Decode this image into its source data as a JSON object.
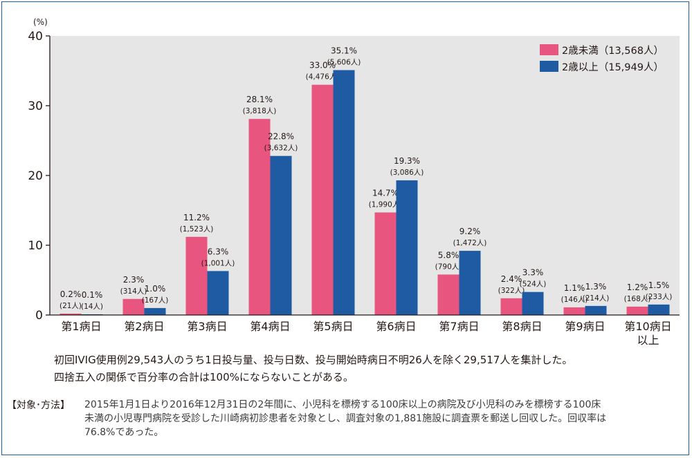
{
  "chart_data": {
    "type": "bar",
    "ylabel": "(%)",
    "ylim": [
      0,
      40
    ],
    "yticks": [
      0,
      10,
      20,
      30,
      40
    ],
    "categories": [
      "第1病日",
      "第2病日",
      "第3病日",
      "第4病日",
      "第5病日",
      "第6病日",
      "第7病日",
      "第8病日",
      "第9病日",
      "第10病日以上"
    ],
    "category_lines": [
      [
        "第1病日"
      ],
      [
        "第2病日"
      ],
      [
        "第3病日"
      ],
      [
        "第4病日"
      ],
      [
        "第5病日"
      ],
      [
        "第6病日"
      ],
      [
        "第7病日"
      ],
      [
        "第8病日"
      ],
      [
        "第9病日"
      ],
      [
        "第10病日",
        "以上"
      ]
    ],
    "legend_position": "top-right",
    "grid": false,
    "series": [
      {
        "name": "2歳未満（13,568人）",
        "color": "#e8557e",
        "values": [
          0.2,
          2.3,
          11.2,
          28.1,
          33.0,
          14.7,
          5.8,
          2.4,
          1.1,
          1.2
        ],
        "pct_labels": [
          "0.2%",
          "2.3%",
          "11.2%",
          "28.1%",
          "33.0%",
          "14.7%",
          "5.8%",
          "2.4%",
          "1.1%",
          "1.2%"
        ],
        "count_labels": [
          "(21人)",
          "(314人)",
          "(1,523人)",
          "(3,818人)",
          "(4,476人)",
          "(1,990人)",
          "(790人)",
          "(322人)",
          "(146人)",
          "(168人)"
        ]
      },
      {
        "name": "2歳以上（15,949人）",
        "color": "#1f5ba3",
        "values": [
          0.1,
          1.0,
          6.3,
          22.8,
          35.1,
          19.3,
          9.2,
          3.3,
          1.3,
          1.5
        ],
        "pct_labels": [
          "0.1%",
          "1.0%",
          "6.3%",
          "22.8%",
          "35.1%",
          "19.3%",
          "9.2%",
          "3.3%",
          "1.3%",
          "1.5%"
        ],
        "count_labels": [
          "(14人)",
          "(167人)",
          "(1,001人)",
          "(3,632人)",
          "(5,606人)",
          "(3,086人)",
          "(1,472人)",
          "(524人)",
          "(214人)",
          "(233人)"
        ]
      }
    ]
  },
  "colors": {
    "plot_background": "#e6e6e6",
    "frame_border": "#1e5aa0"
  },
  "notes": {
    "line1": "初回IVIG使用例29,543人のうち1日投与量、投与日数、投与開始時病日不明26人を除く29,517人を集計した。",
    "line2": "四捨五入の関係で百分率の合計は100%にならないことがある。"
  },
  "method": {
    "label": "【対象･方法】",
    "lines": [
      "2015年1月1日より2016年12月31日の2年間に、小児科を標榜する100床以上の病院及び小児科のみを標榜する100床",
      "未満の小児専門病院を受診した川崎病初診患者を対象とし、調査対象の1,881施設に調査票を郵送し回収した。回収率は",
      "76.8%であった。"
    ]
  }
}
